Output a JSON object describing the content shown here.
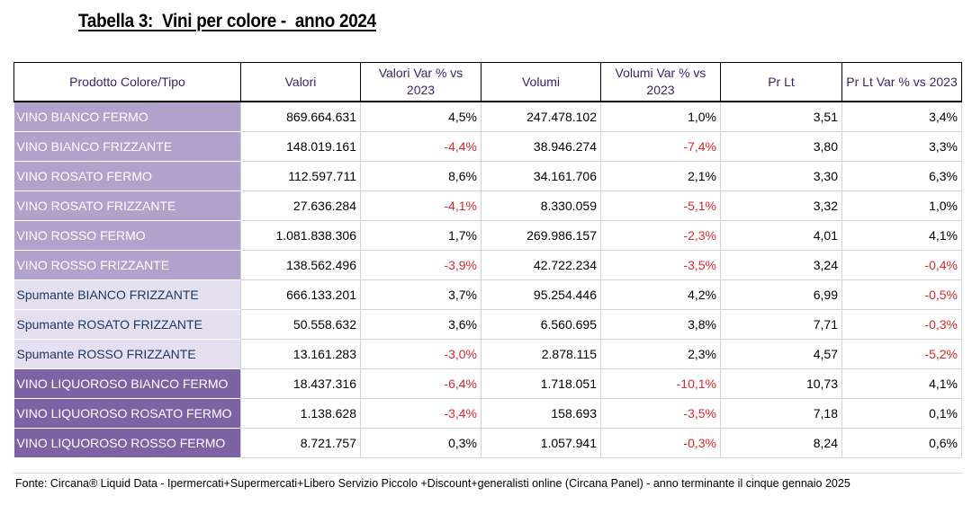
{
  "title": "Tabella 3:  Vini per colore -  anno 2024",
  "headers": {
    "prodotto": "Prodotto Colore/Tipo",
    "valori": "Valori",
    "valori_var": "Valori Var % vs 2023",
    "volumi": "Volumi",
    "volumi_var": "Volumi Var % vs 2023",
    "prlt": "Pr Lt",
    "prlt_var": "Pr Lt Var % vs 2023"
  },
  "rows": [
    {
      "name": "VINO BIANCO FERMO",
      "valori": "869.664.631",
      "valori_var": "4,5%",
      "volumi": "247.478.102",
      "volumi_var": "1,0%",
      "prlt": "3,51",
      "prlt_var": "3,4%"
    },
    {
      "name": "VINO BIANCO FRIZZANTE",
      "valori": "148.019.161",
      "valori_var": "-4,4%",
      "volumi": "38.946.274",
      "volumi_var": "-7,4%",
      "prlt": "3,80",
      "prlt_var": "3,3%"
    },
    {
      "name": "VINO ROSATO FERMO",
      "valori": "112.597.711",
      "valori_var": "8,6%",
      "volumi": "34.161.706",
      "volumi_var": "2,1%",
      "prlt": "3,30",
      "prlt_var": "6,3%"
    },
    {
      "name": "VINO ROSATO FRIZZANTE",
      "valori": "27.636.284",
      "valori_var": "-4,1%",
      "volumi": "8.330.059",
      "volumi_var": "-5,1%",
      "prlt": "3,32",
      "prlt_var": "1,0%"
    },
    {
      "name": "VINO ROSSO FERMO",
      "valori": "1.081.838.306",
      "valori_var": "1,7%",
      "volumi": "269.986.157",
      "volumi_var": "-2,3%",
      "prlt": "4,01",
      "prlt_var": "4,1%"
    },
    {
      "name": "VINO ROSSO FRIZZANTE",
      "valori": "138.562.496",
      "valori_var": "-3,9%",
      "volumi": "42.722.234",
      "volumi_var": "-3,5%",
      "prlt": "3,24",
      "prlt_var": "-0,4%"
    },
    {
      "name": "Spumante BIANCO FRIZZANTE",
      "valori": "666.133.201",
      "valori_var": "3,7%",
      "volumi": "95.254.446",
      "volumi_var": "4,2%",
      "prlt": "6,99",
      "prlt_var": "-0,5%"
    },
    {
      "name": "Spumante ROSATO FRIZZANTE",
      "valori": "50.558.632",
      "valori_var": "3,6%",
      "volumi": "6.560.695",
      "volumi_var": "3,8%",
      "prlt": "7,71",
      "prlt_var": "-0,3%"
    },
    {
      "name": "Spumante ROSSO FRIZZANTE",
      "valori": "13.161.283",
      "valori_var": "-3,0%",
      "volumi": "2.878.115",
      "volumi_var": "2,3%",
      "prlt": "4,57",
      "prlt_var": "-5,2%"
    },
    {
      "name": "VINO LIQUOROSO BIANCO FERMO",
      "valori": "18.437.316",
      "valori_var": "-6,4%",
      "volumi": "1.718.051",
      "volumi_var": "-10,1%",
      "prlt": "10,73",
      "prlt_var": "4,1%"
    },
    {
      "name": "VINO LIQUOROSO ROSATO FERMO",
      "valori": "1.138.628",
      "valori_var": "-3,4%",
      "volumi": "158.693",
      "volumi_var": "-3,5%",
      "prlt": "7,18",
      "prlt_var": "0,1%"
    },
    {
      "name": "VINO LIQUOROSO ROSSO FERMO",
      "valori": "8.721.757",
      "valori_var": "0,3%",
      "volumi": "1.057.941",
      "volumi_var": "-0,3%",
      "prlt": "8,24",
      "prlt_var": "0,6%"
    }
  ],
  "footnote": "Fonte: Circana® Liquid Data - Ipermercati+Supermercati+Libero Servizio Piccolo +Discount+generalisti online (Circana Panel) - anno terminante il cinque gennaio 2025",
  "colors": {
    "group_vino": "#b1a2cc",
    "group_spumante": "#e5e0ef",
    "group_liquoroso": "#7d62a4",
    "negative": "#e0262c",
    "header_text": "#3d1f66",
    "spumante_text": "#1f3864"
  }
}
